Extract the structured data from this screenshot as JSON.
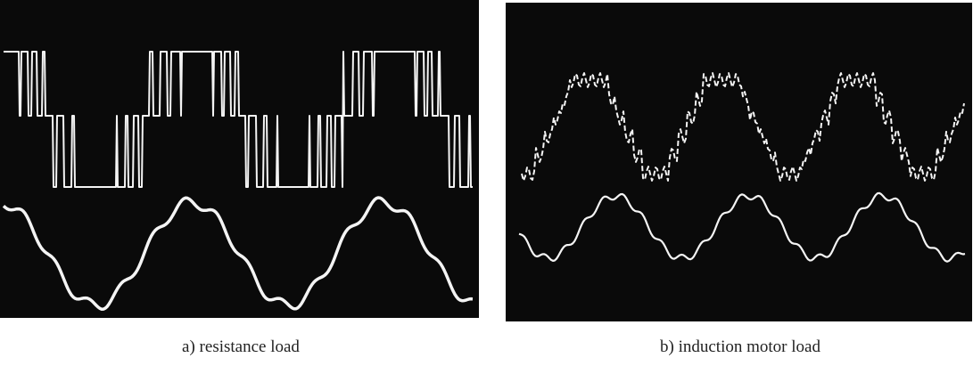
{
  "figures": [
    {
      "caption": "a) resistance load"
    },
    {
      "caption": "b) induction motor load"
    }
  ]
}
